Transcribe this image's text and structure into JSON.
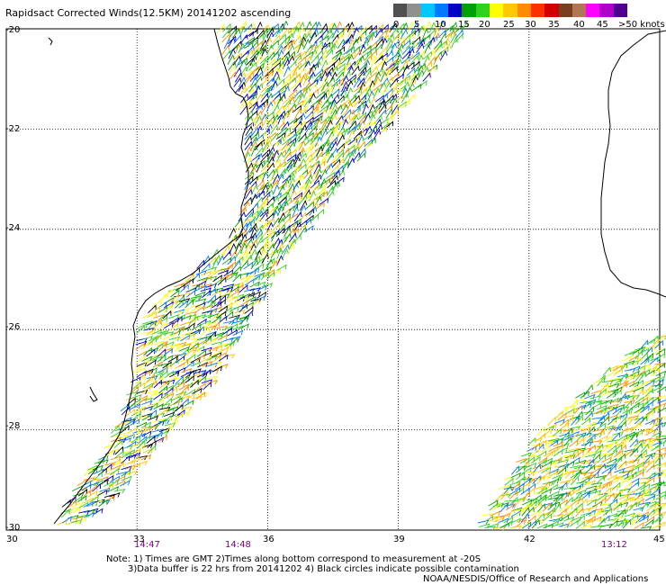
{
  "title": "Rapidsact Corrected Winds(12.5KM) 20141202 ascending",
  "legend": {
    "labels": [
      "0",
      "5",
      "10",
      "15",
      "20",
      "25",
      "30",
      "35",
      "40",
      "45",
      ">50 knots"
    ],
    "colors": [
      "#505050",
      "#909090",
      "#00c8ff",
      "#0078ff",
      "#0000c8",
      "#00a000",
      "#30d020",
      "#ffff00",
      "#ffc800",
      "#ff8c00",
      "#ff3000",
      "#d00000",
      "#784020",
      "#b07850",
      "#ff00ff",
      "#b000c8",
      "#500090"
    ]
  },
  "map": {
    "lat_labels": [
      "-20",
      "-22",
      "-24",
      "-26",
      "-28",
      "-30"
    ],
    "lon_labels": [
      "30",
      "33",
      "36",
      "39",
      "42",
      "45"
    ],
    "time_labels": [
      "14:47",
      "14:48",
      "13:12"
    ]
  },
  "notes": [
    "Note: 1) Times are GMT 2)Times along bottom correspond to measurement at -20S",
    "3)Data buffer is 22 hrs from 20141202 4) Black circles indicate possible contamination",
    "NOAA/NESDIS/Office of Research and Applications"
  ]
}
